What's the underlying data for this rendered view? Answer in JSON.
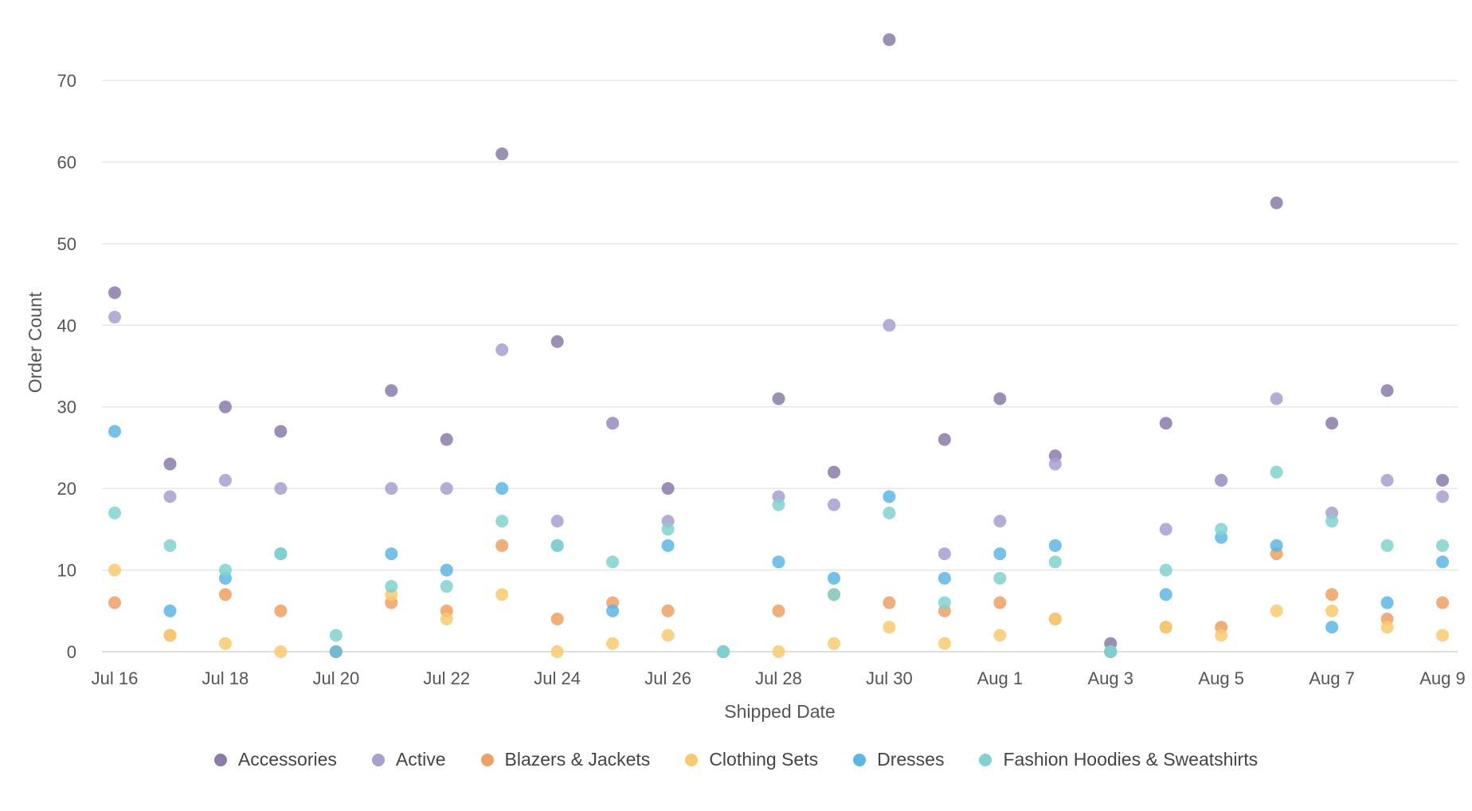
{
  "chart_data": {
    "type": "scatter",
    "xlabel": "Shipped Date",
    "ylabel": "Order Count",
    "ylim": [
      0,
      70
    ],
    "yticks": [
      0,
      10,
      20,
      30,
      40,
      50,
      60,
      70
    ],
    "grid": true,
    "legend_position": "bottom",
    "x": [
      "Jul 16",
      "Jul 17",
      "Jul 18",
      "Jul 19",
      "Jul 20",
      "Jul 21",
      "Jul 22",
      "Jul 23",
      "Jul 24",
      "Jul 25",
      "Jul 26",
      "Jul 27",
      "Jul 28",
      "Jul 29",
      "Jul 30",
      "Jul 31",
      "Aug 1",
      "Aug 2",
      "Aug 3",
      "Aug 4",
      "Aug 5",
      "Aug 6",
      "Aug 7",
      "Aug 8",
      "Aug 9"
    ],
    "xtick_labels": [
      "Jul 16",
      "Jul 18",
      "Jul 20",
      "Jul 22",
      "Jul 24",
      "Jul 26",
      "Jul 28",
      "Jul 30",
      "Aug 1",
      "Aug 3",
      "Aug 5",
      "Aug 7",
      "Aug 9"
    ],
    "series": [
      {
        "name": "Accessories",
        "color": "#8a7ba8",
        "values": [
          44,
          23,
          30,
          27,
          0,
          32,
          26,
          61,
          38,
          28,
          20,
          0,
          31,
          22,
          75,
          26,
          31,
          24,
          1,
          28,
          21,
          55,
          28,
          32,
          21
        ]
      },
      {
        "name": "Active",
        "color": "#a99fd0",
        "values": [
          41,
          19,
          21,
          20,
          0,
          20,
          20,
          37,
          16,
          28,
          16,
          0,
          19,
          18,
          40,
          12,
          16,
          23,
          0,
          15,
          21,
          31,
          17,
          21,
          19
        ]
      },
      {
        "name": "Blazers & Jackets",
        "color": "#f0a062",
        "values": [
          6,
          2,
          7,
          5,
          0,
          6,
          5,
          13,
          4,
          6,
          5,
          0,
          5,
          7,
          6,
          5,
          6,
          4,
          0,
          3,
          3,
          12,
          7,
          4,
          6
        ]
      },
      {
        "name": "Clothing Sets",
        "color": "#f8ca6e",
        "values": [
          10,
          2,
          1,
          0,
          0,
          7,
          4,
          7,
          0,
          1,
          2,
          0,
          0,
          1,
          3,
          1,
          2,
          4,
          0,
          3,
          2,
          5,
          5,
          3,
          2
        ]
      },
      {
        "name": "Dresses",
        "color": "#5cb6e6",
        "values": [
          27,
          5,
          9,
          12,
          0,
          12,
          10,
          20,
          13,
          5,
          13,
          0,
          11,
          9,
          19,
          9,
          12,
          13,
          0,
          7,
          14,
          13,
          3,
          6,
          11
        ]
      },
      {
        "name": "Fashion Hoodies & Sweatshirts",
        "color": "#80d2cd",
        "values": [
          17,
          13,
          10,
          12,
          2,
          8,
          8,
          16,
          13,
          11,
          15,
          0,
          18,
          7,
          17,
          6,
          9,
          11,
          0,
          10,
          15,
          22,
          16,
          13,
          13
        ]
      }
    ]
  }
}
